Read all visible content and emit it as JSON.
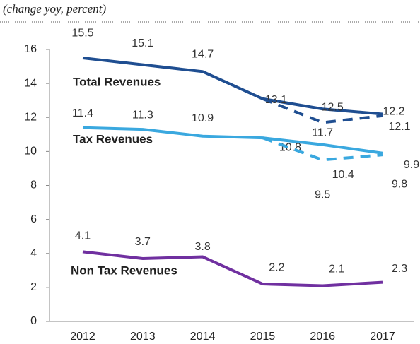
{
  "chart_data": {
    "type": "line",
    "subtitle": "(change yoy, percent)",
    "categories": [
      "2012",
      "2013",
      "2014",
      "2015",
      "2016",
      "2017"
    ],
    "ylim": [
      0,
      16
    ],
    "yticks": [
      0,
      2,
      4,
      6,
      8,
      10,
      12,
      14,
      16
    ],
    "series": [
      {
        "name": "Total Revenues",
        "color": "#1f4e91",
        "values": [
          15.5,
          15.1,
          14.7,
          13.1,
          12.5,
          12.2
        ]
      },
      {
        "color": "#1f4e91",
        "dashed": true,
        "values": [
          null,
          null,
          null,
          13.1,
          11.7,
          12.1
        ]
      },
      {
        "name": "Tax Revenues",
        "color": "#3aa8df",
        "values": [
          11.4,
          11.3,
          10.9,
          10.8,
          10.4,
          9.9
        ]
      },
      {
        "color": "#3aa8df",
        "dashed": true,
        "values": [
          null,
          null,
          null,
          10.8,
          9.5,
          9.8
        ]
      },
      {
        "name": "Non Tax Revenues",
        "color": "#7030a0",
        "values": [
          4.1,
          3.7,
          3.8,
          2.2,
          2.1,
          2.3
        ]
      }
    ]
  }
}
